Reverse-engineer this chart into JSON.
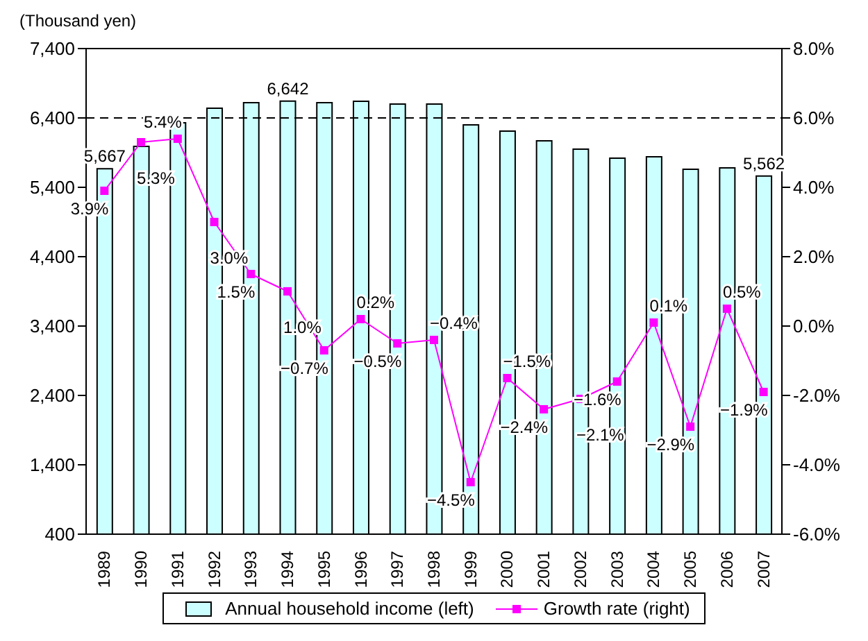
{
  "chart_data": {
    "type": "bar",
    "ylabel": "(Thousand yen)",
    "categories": [
      "1989",
      "1990",
      "1991",
      "1992",
      "1993",
      "1994",
      "1995",
      "1996",
      "1997",
      "1998",
      "1999",
      "2000",
      "2001",
      "2002",
      "2003",
      "2004",
      "2005",
      "2006",
      "2007"
    ],
    "series": [
      {
        "name": "Annual household income (left)",
        "color": "#ccffff",
        "values": [
          5667,
          5990,
          6330,
          6540,
          6620,
          6642,
          6620,
          6640,
          6600,
          6600,
          6300,
          6210,
          6070,
          5950,
          5820,
          5840,
          5660,
          5680,
          5562
        ],
        "value_labels": [
          "5,667",
          null,
          null,
          null,
          null,
          "6,642",
          null,
          null,
          null,
          null,
          null,
          null,
          null,
          null,
          null,
          null,
          null,
          null,
          "5,562"
        ]
      },
      {
        "name": "Growth rate (right)",
        "type": "line",
        "axis": "y2",
        "color": "#ff00ff",
        "marker": "square",
        "values": [
          3.9,
          5.3,
          5.4,
          3.0,
          1.5,
          1.0,
          -0.7,
          0.2,
          -0.5,
          -0.4,
          -4.5,
          -1.5,
          -2.4,
          -2.1,
          -1.6,
          0.1,
          -2.9,
          0.5,
          -1.9
        ],
        "value_labels": [
          "3.9%",
          "5.3%",
          "5.4%",
          "3.0%",
          "1.5%",
          "1.0%",
          "−0.7%",
          "0.2%",
          "−0.5%",
          "−0.4%",
          "−4.5%",
          "−1.5%",
          "−2.4%",
          "−2.1%",
          "−1.6%",
          "0.1%",
          "−2.9%",
          "0.5%",
          "−1.9%"
        ]
      }
    ],
    "ylim": [
      400,
      7400
    ],
    "yticks": [
      {
        "value": 400,
        "label": "400"
      },
      {
        "value": 1400,
        "label": "1,400"
      },
      {
        "value": 2400,
        "label": "2,400"
      },
      {
        "value": 3400,
        "label": "3,400"
      },
      {
        "value": 4400,
        "label": "4,400"
      },
      {
        "value": 5400,
        "label": "5,400"
      },
      {
        "value": 6400,
        "label": "6,400"
      },
      {
        "value": 7400,
        "label": "7,400"
      }
    ],
    "y2lim": [
      -6,
      8
    ],
    "y2ticks": [
      {
        "value": -6,
        "label": "-6.0%"
      },
      {
        "value": -4,
        "label": "-4.0%"
      },
      {
        "value": -2,
        "label": "-2.0%"
      },
      {
        "value": 0,
        "label": "0.0%"
      },
      {
        "value": 2,
        "label": "2.0%"
      },
      {
        "value": 4,
        "label": "4.0%"
      },
      {
        "value": 6,
        "label": "6.0%"
      },
      {
        "value": 8,
        "label": "8.0%"
      }
    ],
    "ref_lines": [
      {
        "axis": "y",
        "value": 6400,
        "line_style": "dashed",
        "color": "#000000"
      }
    ],
    "legend": "bottom",
    "grid": false
  }
}
